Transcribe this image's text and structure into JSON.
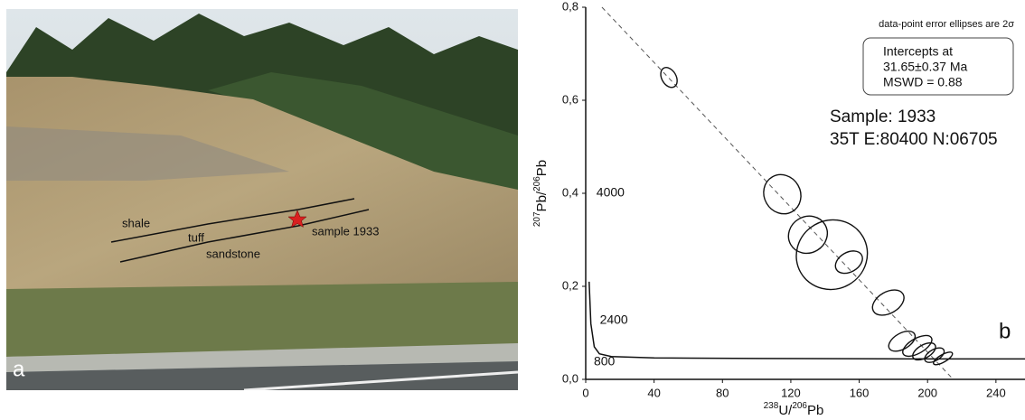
{
  "photo": {
    "labels": {
      "shale": "shale",
      "tuff": "tuff",
      "sandstone": "sandstone",
      "sample": "sample 1933"
    },
    "panel": "a"
  },
  "chart_data": {
    "type": "scatter",
    "panel": "b",
    "xlabel": [
      "238",
      "U/",
      "206",
      "Pb"
    ],
    "ylabel": [
      "207",
      "Pb/",
      "206",
      "Pb"
    ],
    "note": "data-point error ellipses are 2σ",
    "box": [
      "Intercepts at",
      "31.65±0.37 Ma",
      "MSWD = 0.88"
    ],
    "sample": [
      "Sample: 1933",
      "35T E:80400 N:06705"
    ],
    "annotations": [
      {
        "text": "4000",
        "x": 2,
        "y": 0.4
      },
      {
        "text": "2400",
        "x": 4,
        "y": 0.127
      },
      {
        "text": "800",
        "x": 0.5,
        "y": 0.037
      }
    ],
    "x": [
      48.7,
      115,
      130,
      144,
      154,
      177,
      185,
      194,
      198,
      204,
      209
    ],
    "values": [
      0.649,
      0.398,
      0.311,
      0.268,
      0.252,
      0.165,
      0.082,
      0.072,
      0.06,
      0.052,
      0.045
    ],
    "x_err": [
      4.2,
      10.6,
      11.6,
      21,
      8.5,
      10,
      8.5,
      9.5,
      7.4,
      6.3,
      6.3
    ],
    "y_err": [
      0.023,
      0.043,
      0.039,
      0.074,
      0.021,
      0.023,
      0.017,
      0.016,
      0.014,
      0.012,
      0.008
    ],
    "concordia": {
      "x": [
        2,
        3,
        5,
        8,
        15,
        40,
        100,
        200,
        257
      ],
      "y": [
        0.21,
        0.12,
        0.07,
        0.055,
        0.049,
        0.046,
        0.045,
        0.044,
        0.044
      ]
    },
    "regression": {
      "x": [
        9.5,
        215
      ],
      "y": [
        0.8,
        0
      ]
    },
    "xlim": [
      0,
      257
    ],
    "ylim": [
      0,
      0.8
    ],
    "xticks": [
      0,
      40,
      80,
      120,
      160,
      200,
      240
    ],
    "yticks": [
      {
        "value": 0,
        "label": "0,0"
      },
      {
        "value": 0.2,
        "label": "0,2"
      },
      {
        "value": 0.4,
        "label": "0,4"
      },
      {
        "value": 0.6,
        "label": "0,6"
      },
      {
        "value": 0.8,
        "label": "0,8"
      }
    ]
  }
}
